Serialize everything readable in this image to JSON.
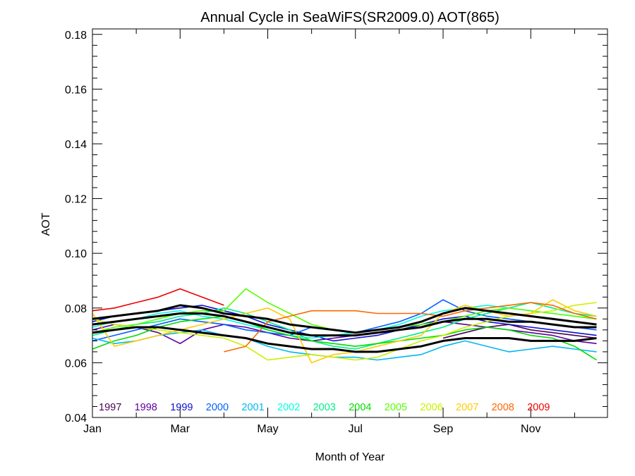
{
  "chart_data": {
    "type": "line",
    "title": "Annual Cycle in SeaWiFS(SR2009.0) AOT(865)",
    "xlabel": "Month of Year",
    "ylabel": "AOT",
    "xlim": [
      1,
      12.75
    ],
    "ylim": [
      0.04,
      0.182
    ],
    "x_ticks": [
      {
        "value": 1,
        "label": "Jan"
      },
      {
        "value": 3,
        "label": "Mar"
      },
      {
        "value": 5,
        "label": "May"
      },
      {
        "value": 7,
        "label": "Jul"
      },
      {
        "value": 9,
        "label": "Sep"
      },
      {
        "value": 11,
        "label": "Nov"
      }
    ],
    "y_ticks": [
      {
        "value": 0.04,
        "label": "0.04"
      },
      {
        "value": 0.06,
        "label": "0.06"
      },
      {
        "value": 0.08,
        "label": "0.08"
      },
      {
        "value": 0.1,
        "label": "0.10"
      },
      {
        "value": 0.12,
        "label": "0.12"
      },
      {
        "value": 0.14,
        "label": "0.14"
      },
      {
        "value": 0.16,
        "label": "0.16"
      },
      {
        "value": 0.18,
        "label": "0.18"
      }
    ],
    "grid": false,
    "legend_position": "bottom inside plot",
    "x": [
      1,
      1.5,
      2,
      2.5,
      3,
      3.5,
      4,
      4.5,
      5,
      5.5,
      6,
      6.5,
      7,
      7.5,
      8,
      8.5,
      9,
      9.5,
      10,
      10.5,
      11,
      11.5,
      12,
      12.5
    ],
    "series": [
      {
        "name": "1997",
        "color": "#4b0055",
        "values": [
          null,
          null,
          null,
          null,
          null,
          null,
          null,
          null,
          null,
          null,
          null,
          null,
          null,
          null,
          null,
          null,
          0.069,
          0.071,
          0.073,
          0.074,
          0.072,
          0.071,
          0.07,
          0.069
        ]
      },
      {
        "name": "1998",
        "color": "#5a00a0",
        "values": [
          0.072,
          0.074,
          0.073,
          0.071,
          0.067,
          0.072,
          0.074,
          0.073,
          0.071,
          0.069,
          0.068,
          0.069,
          0.07,
          0.071,
          0.072,
          0.074,
          0.075,
          0.074,
          0.073,
          0.072,
          0.071,
          0.07,
          0.068,
          0.067
        ]
      },
      {
        "name": "1999",
        "color": "#1010d0",
        "values": [
          0.075,
          0.077,
          0.078,
          0.079,
          0.08,
          0.081,
          0.079,
          0.077,
          0.074,
          0.072,
          0.07,
          0.068,
          0.069,
          0.07,
          0.072,
          0.074,
          0.076,
          0.077,
          0.075,
          0.074,
          0.073,
          0.072,
          0.071,
          0.07
        ]
      },
      {
        "name": "2000",
        "color": "#0060ff",
        "values": [
          0.068,
          0.07,
          0.072,
          0.074,
          0.076,
          0.075,
          0.074,
          0.072,
          0.071,
          0.07,
          0.073,
          0.072,
          0.071,
          0.073,
          0.075,
          0.078,
          0.083,
          0.079,
          0.077,
          0.076,
          0.075,
          0.074,
          0.073,
          0.072
        ]
      },
      {
        "name": "2001",
        "color": "#00b8ee",
        "values": [
          0.069,
          0.067,
          0.068,
          0.07,
          0.071,
          0.072,
          0.07,
          0.069,
          0.066,
          0.064,
          0.063,
          0.062,
          0.062,
          0.061,
          0.062,
          0.063,
          0.066,
          0.068,
          0.066,
          0.064,
          0.065,
          0.066,
          0.065,
          0.064
        ]
      },
      {
        "name": "2002",
        "color": "#00ffe0",
        "values": [
          0.073,
          0.075,
          0.076,
          0.078,
          0.079,
          0.077,
          0.076,
          0.074,
          0.072,
          0.07,
          0.069,
          0.07,
          0.071,
          0.072,
          0.074,
          0.077,
          0.079,
          0.08,
          0.081,
          0.08,
          0.079,
          0.078,
          0.077,
          0.076
        ]
      },
      {
        "name": "2003",
        "color": "#00ee88",
        "values": [
          0.07,
          0.072,
          0.074,
          0.075,
          0.077,
          0.078,
          0.08,
          0.078,
          0.075,
          0.072,
          0.068,
          0.066,
          0.065,
          0.067,
          0.069,
          0.071,
          0.073,
          0.076,
          0.078,
          0.08,
          0.082,
          0.08,
          0.078,
          0.077
        ]
      },
      {
        "name": "2004",
        "color": "#00dd00",
        "values": [
          0.065,
          0.068,
          0.07,
          0.073,
          0.075,
          0.076,
          0.077,
          0.075,
          0.072,
          0.07,
          0.068,
          0.067,
          0.066,
          0.067,
          0.068,
          0.069,
          0.07,
          0.072,
          0.073,
          0.072,
          0.07,
          0.069,
          0.066,
          0.061
        ]
      },
      {
        "name": "2005",
        "color": "#55ff00",
        "values": [
          0.071,
          0.073,
          0.074,
          0.076,
          0.078,
          0.079,
          0.079,
          0.087,
          0.082,
          0.078,
          0.074,
          0.072,
          0.071,
          0.072,
          0.073,
          0.074,
          0.075,
          0.077,
          0.079,
          0.08,
          0.079,
          0.078,
          0.077,
          0.076
        ]
      },
      {
        "name": "2006",
        "color": "#ccf000",
        "values": [
          0.076,
          0.074,
          0.073,
          0.072,
          0.071,
          0.07,
          0.069,
          0.066,
          0.061,
          0.062,
          0.063,
          0.062,
          0.061,
          0.062,
          0.065,
          0.068,
          0.07,
          0.073,
          0.075,
          0.077,
          0.078,
          0.079,
          0.081,
          0.082
        ]
      },
      {
        "name": "2007",
        "color": "#ffcc00",
        "values": [
          0.078,
          0.066,
          0.068,
          0.07,
          0.072,
          0.074,
          0.076,
          0.078,
          0.08,
          0.076,
          0.06,
          0.063,
          0.064,
          0.066,
          0.068,
          0.07,
          0.078,
          0.081,
          0.079,
          0.077,
          0.078,
          0.083,
          0.079,
          0.077
        ]
      },
      {
        "name": "2008",
        "color": "#ff6600",
        "values": [
          null,
          null,
          null,
          null,
          null,
          null,
          0.064,
          0.066,
          0.075,
          0.077,
          0.079,
          0.079,
          0.079,
          0.078,
          0.078,
          0.078,
          0.077,
          0.079,
          0.08,
          0.081,
          0.082,
          0.081,
          0.078,
          0.076
        ]
      },
      {
        "name": "2009",
        "color": "#ee0000",
        "values": [
          0.079,
          0.08,
          0.082,
          0.084,
          0.087,
          0.084,
          0.081,
          null,
          null,
          null,
          null,
          null,
          null,
          null,
          null,
          null,
          null,
          null,
          null,
          null,
          null,
          null,
          null,
          null
        ]
      },
      {
        "name": "",
        "color": "#000000",
        "values": [
          0.076,
          0.077,
          0.078,
          0.079,
          0.081,
          0.08,
          0.078,
          0.077,
          0.076,
          0.074,
          0.073,
          0.072,
          0.071,
          0.072,
          0.073,
          0.075,
          0.078,
          0.08,
          0.079,
          0.078,
          0.077,
          0.076,
          0.075,
          0.074
        ]
      },
      {
        "name": "",
        "color": "#000000",
        "values": [
          0.074,
          0.075,
          0.076,
          0.077,
          0.078,
          0.078,
          0.077,
          0.075,
          0.073,
          0.071,
          0.07,
          0.07,
          0.07,
          0.071,
          0.072,
          0.073,
          0.075,
          0.076,
          0.076,
          0.075,
          0.075,
          0.074,
          0.073,
          0.073
        ]
      },
      {
        "name": "",
        "color": "#000000",
        "values": [
          0.071,
          0.072,
          0.073,
          0.073,
          0.072,
          0.071,
          0.07,
          0.069,
          0.067,
          0.066,
          0.065,
          0.065,
          0.064,
          0.064,
          0.065,
          0.066,
          0.068,
          0.069,
          0.069,
          0.069,
          0.068,
          0.068,
          0.068,
          0.069
        ]
      }
    ]
  }
}
